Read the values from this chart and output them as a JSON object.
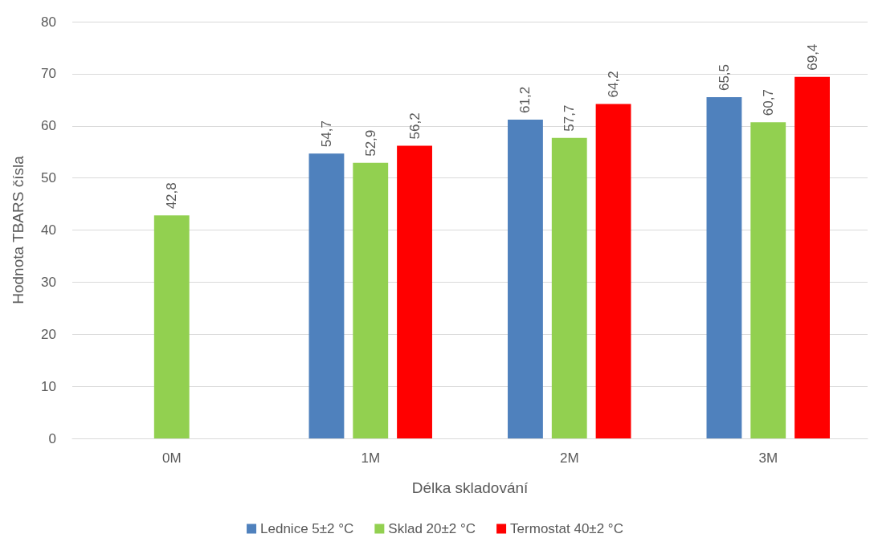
{
  "chart_data": {
    "type": "bar",
    "xlabel": "Délka skladování",
    "ylabel": "Hodnota TBARS čísla",
    "categories": [
      "0M",
      "1M",
      "2M",
      "3M"
    ],
    "series": [
      {
        "name": "Lednice 5±2 °C",
        "color": "#4f81bd",
        "values": [
          null,
          54.7,
          61.2,
          65.5
        ],
        "value_labels": [
          null,
          "54,7",
          "61,2",
          "65,5"
        ]
      },
      {
        "name": "Sklad 20±2 °C",
        "color": "#92d050",
        "values": [
          42.8,
          52.9,
          57.7,
          60.7
        ],
        "value_labels": [
          "42,8",
          "52,9",
          "57,7",
          "60,7"
        ]
      },
      {
        "name": "Termostat 40±2 °C",
        "color": "#ff0000",
        "values": [
          null,
          56.2,
          64.2,
          69.4
        ],
        "value_labels": [
          null,
          "56,2",
          "64,2",
          "69,4"
        ]
      }
    ],
    "ylim": [
      0,
      80
    ],
    "yticks": [
      0,
      10,
      20,
      30,
      40,
      50,
      60,
      70,
      80
    ],
    "grid": "y",
    "legend": "bottom"
  }
}
